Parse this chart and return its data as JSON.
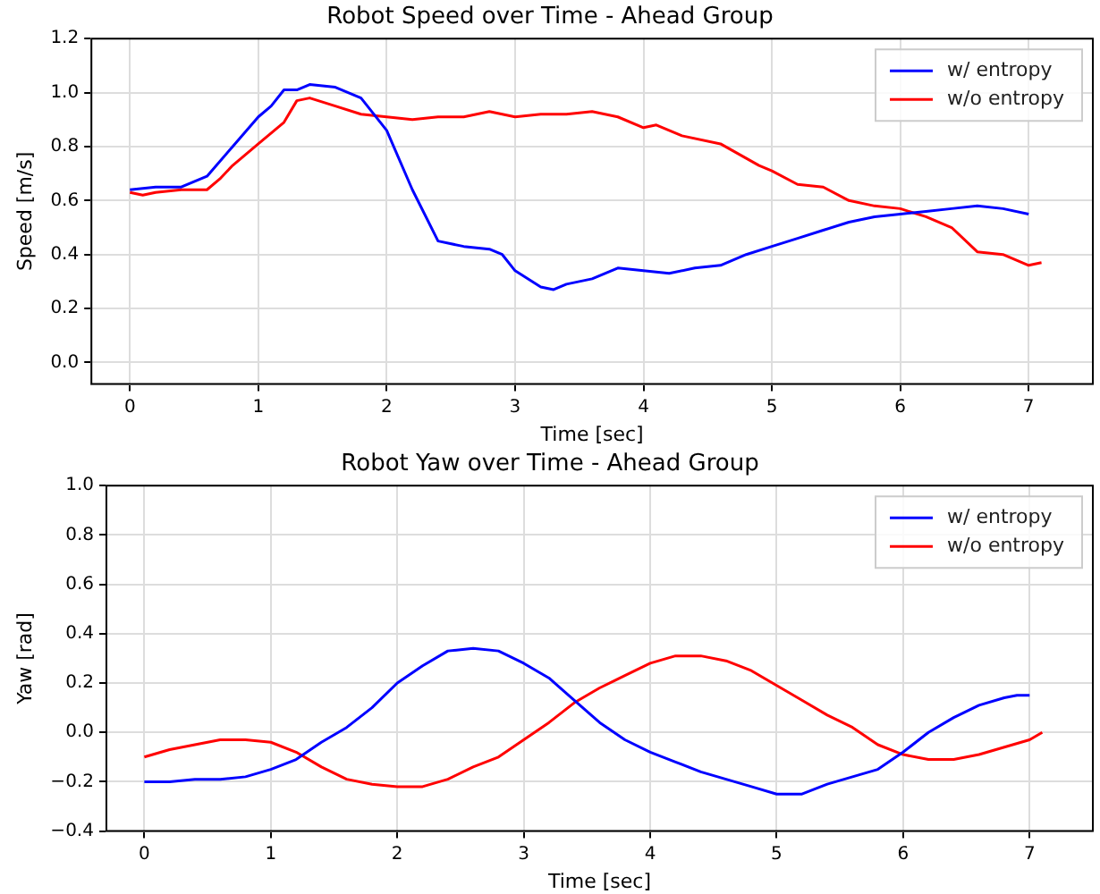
{
  "chart_data": [
    {
      "type": "line",
      "title": "Robot Speed over Time - Ahead Group",
      "xlabel": "Time [sec]",
      "ylabel": "Speed [m/s]",
      "xlim": [
        -0.3,
        7.5
      ],
      "xticks": [
        0,
        1,
        2,
        3,
        4,
        5,
        6,
        7
      ],
      "ylim": [
        -0.08,
        1.2
      ],
      "yticks": [
        {
          "value": 0,
          "label": "0.0"
        },
        {
          "value": 0.2,
          "label": "0.2"
        },
        {
          "value": 0.4,
          "label": "0.4"
        },
        {
          "value": 0.6,
          "label": "0.6"
        },
        {
          "value": 0.8,
          "label": "0.8"
        },
        {
          "value": 1,
          "label": "1.0"
        },
        {
          "value": 1.2,
          "label": "1.2"
        }
      ],
      "grid": true,
      "legend": "top right",
      "series": [
        {
          "name": "w/ entropy",
          "color": "#0000ff",
          "x": [
            0,
            0.2,
            0.4,
            0.6,
            0.8,
            1.0,
            1.1,
            1.2,
            1.3,
            1.4,
            1.6,
            1.8,
            2.0,
            2.2,
            2.4,
            2.6,
            2.8,
            2.9,
            3.0,
            3.2,
            3.3,
            3.4,
            3.6,
            3.8,
            4.0,
            4.2,
            4.4,
            4.6,
            4.8,
            5.0,
            5.2,
            5.4,
            5.6,
            5.8,
            6.0,
            6.2,
            6.4,
            6.6,
            6.8,
            7.0
          ],
          "values": [
            0.64,
            0.65,
            0.65,
            0.69,
            0.8,
            0.91,
            0.95,
            1.01,
            1.01,
            1.03,
            1.02,
            0.98,
            0.86,
            0.64,
            0.45,
            0.43,
            0.42,
            0.4,
            0.34,
            0.28,
            0.27,
            0.29,
            0.31,
            0.35,
            0.34,
            0.33,
            0.35,
            0.36,
            0.4,
            0.43,
            0.46,
            0.49,
            0.52,
            0.54,
            0.55,
            0.56,
            0.57,
            0.58,
            0.57,
            0.55
          ]
        },
        {
          "name": "w/o entropy",
          "color": "#ff0000",
          "x": [
            0,
            0.1,
            0.2,
            0.4,
            0.6,
            0.7,
            0.8,
            1.0,
            1.2,
            1.3,
            1.4,
            1.6,
            1.8,
            2.0,
            2.2,
            2.4,
            2.6,
            2.8,
            3.0,
            3.2,
            3.4,
            3.6,
            3.8,
            4.0,
            4.1,
            4.3,
            4.6,
            4.9,
            5.0,
            5.2,
            5.4,
            5.6,
            5.8,
            6.0,
            6.2,
            6.4,
            6.6,
            6.8,
            7.0,
            7.1
          ],
          "values": [
            0.63,
            0.62,
            0.63,
            0.64,
            0.64,
            0.68,
            0.73,
            0.81,
            0.89,
            0.97,
            0.98,
            0.95,
            0.92,
            0.91,
            0.9,
            0.91,
            0.91,
            0.93,
            0.91,
            0.92,
            0.92,
            0.93,
            0.91,
            0.87,
            0.88,
            0.84,
            0.81,
            0.73,
            0.71,
            0.66,
            0.65,
            0.6,
            0.58,
            0.57,
            0.54,
            0.5,
            0.41,
            0.4,
            0.36,
            0.37
          ]
        }
      ]
    },
    {
      "type": "line",
      "title": "Robot Yaw over Time - Ahead Group",
      "xlabel": "Time [sec]",
      "ylabel": "Yaw [rad]",
      "xlim": [
        -0.3,
        7.5
      ],
      "xticks": [
        0,
        1,
        2,
        3,
        4,
        5,
        6,
        7
      ],
      "ylim": [
        -0.4,
        1.0
      ],
      "yticks": [
        {
          "value": -0.4,
          "label": "−0.4"
        },
        {
          "value": -0.2,
          "label": "−0.2"
        },
        {
          "value": 0,
          "label": "0.0"
        },
        {
          "value": 0.2,
          "label": "0.2"
        },
        {
          "value": 0.4,
          "label": "0.4"
        },
        {
          "value": 0.6,
          "label": "0.6"
        },
        {
          "value": 0.8,
          "label": "0.8"
        },
        {
          "value": 1,
          "label": "1.0"
        }
      ],
      "grid": true,
      "legend": "top right",
      "series": [
        {
          "name": "w/ entropy",
          "color": "#0000ff",
          "x": [
            0,
            0.2,
            0.4,
            0.6,
            0.8,
            1.0,
            1.2,
            1.4,
            1.6,
            1.8,
            2.0,
            2.2,
            2.4,
            2.6,
            2.8,
            3.0,
            3.2,
            3.4,
            3.6,
            3.8,
            4.0,
            4.2,
            4.4,
            4.6,
            4.8,
            5.0,
            5.2,
            5.4,
            5.6,
            5.8,
            6.0,
            6.2,
            6.4,
            6.6,
            6.8,
            6.9,
            7.0
          ],
          "values": [
            -0.2,
            -0.2,
            -0.19,
            -0.19,
            -0.18,
            -0.15,
            -0.11,
            -0.04,
            0.02,
            0.1,
            0.2,
            0.27,
            0.33,
            0.34,
            0.33,
            0.28,
            0.22,
            0.13,
            0.04,
            -0.03,
            -0.08,
            -0.12,
            -0.16,
            -0.19,
            -0.22,
            -0.25,
            -0.25,
            -0.21,
            -0.18,
            -0.15,
            -0.08,
            0.0,
            0.06,
            0.11,
            0.14,
            0.15,
            0.15
          ]
        },
        {
          "name": "w/o entropy",
          "color": "#ff0000",
          "x": [
            0,
            0.2,
            0.4,
            0.6,
            0.8,
            1.0,
            1.2,
            1.4,
            1.6,
            1.8,
            2.0,
            2.2,
            2.4,
            2.6,
            2.8,
            3.0,
            3.2,
            3.4,
            3.6,
            3.8,
            4.0,
            4.2,
            4.4,
            4.6,
            4.8,
            5.0,
            5.2,
            5.4,
            5.6,
            5.8,
            6.0,
            6.2,
            6.4,
            6.6,
            6.8,
            7.0,
            7.1
          ],
          "values": [
            -0.1,
            -0.07,
            -0.05,
            -0.03,
            -0.03,
            -0.04,
            -0.08,
            -0.14,
            -0.19,
            -0.21,
            -0.22,
            -0.22,
            -0.19,
            -0.14,
            -0.1,
            -0.03,
            0.04,
            0.12,
            0.18,
            0.23,
            0.28,
            0.31,
            0.31,
            0.29,
            0.25,
            0.19,
            0.13,
            0.07,
            0.02,
            -0.05,
            -0.09,
            -0.11,
            -0.11,
            -0.09,
            -0.06,
            -0.03,
            0.0
          ]
        }
      ]
    }
  ]
}
